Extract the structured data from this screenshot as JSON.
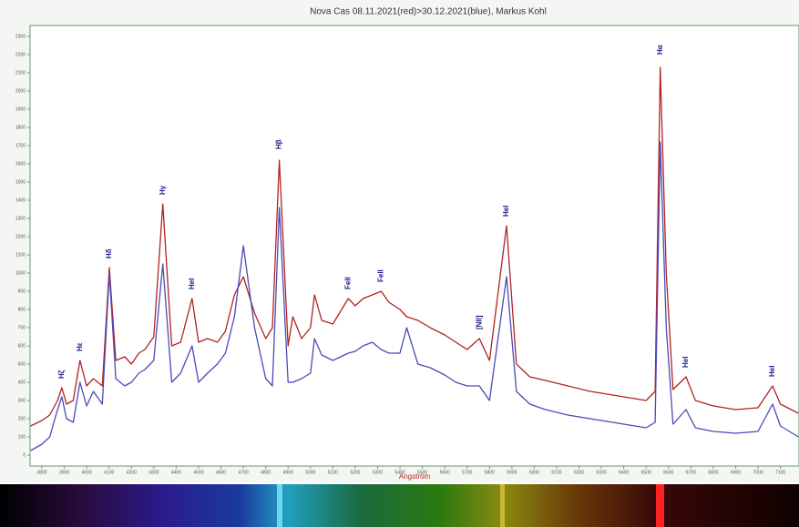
{
  "chart_data": {
    "type": "line",
    "title": "Nova Cas 08.11.2021(red)>30.12.2021(blue), Markus Kohl",
    "x_label": "Angström",
    "x": [
      3750,
      3800,
      3835,
      3870,
      3889,
      3910,
      3940,
      3970,
      4000,
      4030,
      4070,
      4101,
      4130,
      4170,
      4200,
      4233,
      4260,
      4300,
      4340,
      4380,
      4420,
      4471,
      4500,
      4540,
      4584,
      4620,
      4660,
      4700,
      4750,
      4800,
      4830,
      4861,
      4900,
      4921,
      4960,
      5000,
      5018,
      5050,
      5100,
      5169,
      5200,
      5235,
      5276,
      5316,
      5350,
      5400,
      5430,
      5480,
      5535,
      5600,
      5650,
      5700,
      5755,
      5800,
      5876,
      5920,
      5980,
      6050,
      6150,
      6250,
      6350,
      6450,
      6500,
      6540,
      6563,
      6590,
      6620,
      6678,
      6720,
      6800,
      6900,
      7000,
      7065,
      7100,
      7180
    ],
    "series": [
      {
        "name": "08.11.2021",
        "color": "#b22222",
        "values": [
          160,
          190,
          220,
          300,
          370,
          280,
          300,
          520,
          380,
          420,
          380,
          1030,
          520,
          540,
          500,
          560,
          580,
          650,
          1380,
          600,
          620,
          860,
          620,
          640,
          620,
          680,
          880,
          980,
          780,
          640,
          700,
          1620,
          600,
          760,
          640,
          700,
          880,
          740,
          720,
          860,
          820,
          860,
          880,
          900,
          840,
          800,
          760,
          740,
          700,
          660,
          620,
          580,
          640,
          520,
          1260,
          500,
          430,
          410,
          380,
          350,
          330,
          310,
          300,
          350,
          2130,
          1000,
          360,
          430,
          300,
          270,
          250,
          260,
          380,
          280,
          230
        ]
      },
      {
        "name": "30.12.2021",
        "color": "#4a4ab8",
        "values": [
          25,
          60,
          100,
          250,
          320,
          200,
          180,
          400,
          270,
          350,
          280,
          1000,
          420,
          380,
          400,
          450,
          470,
          520,
          1050,
          400,
          450,
          600,
          400,
          450,
          500,
          560,
          760,
          1150,
          700,
          420,
          380,
          1360,
          400,
          400,
          420,
          450,
          640,
          550,
          520,
          560,
          570,
          600,
          620,
          580,
          560,
          560,
          700,
          500,
          480,
          440,
          400,
          380,
          380,
          300,
          980,
          350,
          280,
          250,
          220,
          200,
          180,
          160,
          150,
          180,
          1720,
          700,
          170,
          250,
          150,
          130,
          120,
          130,
          280,
          160,
          100
        ]
      }
    ],
    "xlim": [
      3747,
      7183
    ],
    "xticks": [
      3800,
      3900,
      4000,
      4100,
      4200,
      4300,
      4400,
      4500,
      4600,
      4700,
      4800,
      4900,
      5000,
      5100,
      5200,
      5300,
      5400,
      5500,
      5600,
      5700,
      5800,
      5900,
      6000,
      6100,
      6200,
      6300,
      6400,
      6500,
      6600,
      6700,
      6800,
      6900,
      7000,
      7100
    ],
    "ylim": [
      -60,
      2360
    ],
    "yticks": [
      0,
      100,
      200,
      300,
      400,
      500,
      600,
      700,
      800,
      900,
      1000,
      1100,
      1200,
      1300,
      1400,
      1500,
      1600,
      1700,
      1800,
      1900,
      2000,
      2100,
      2200,
      2300
    ],
    "annotations": [
      {
        "text": "Hζ",
        "x": 3889,
        "y": 420,
        "color": "#1a1a8c"
      },
      {
        "text": "Hε",
        "x": 3970,
        "y": 570,
        "color": "#1a1a8c"
      },
      {
        "text": "Hδ",
        "x": 4101,
        "y": 1080,
        "color": "#1a1a8c"
      },
      {
        "text": "Hγ",
        "x": 4340,
        "y": 1430,
        "color": "#1a1a8c"
      },
      {
        "text": "HeI",
        "x": 4471,
        "y": 910,
        "color": "#1a1a8c"
      },
      {
        "text": "Hβ",
        "x": 4861,
        "y": 1680,
        "color": "#1a1a8c"
      },
      {
        "text": "FeII",
        "x": 5169,
        "y": 910,
        "color": "#1a1a8c"
      },
      {
        "text": "FeII",
        "x": 5316,
        "y": 950,
        "color": "#1a1a8c"
      },
      {
        "text": "[NII]",
        "x": 5755,
        "y": 690,
        "color": "#1a1a8c"
      },
      {
        "text": "HeI",
        "x": 5876,
        "y": 1310,
        "color": "#1a1a8c"
      },
      {
        "text": "Hα",
        "x": 6563,
        "y": 2200,
        "color": "#1a1a8c"
      },
      {
        "text": "HeI",
        "x": 6678,
        "y": 480,
        "color": "#1a1a8c"
      },
      {
        "text": "HeI",
        "x": 7065,
        "y": 430,
        "color": "#1a1a8c"
      }
    ]
  }
}
